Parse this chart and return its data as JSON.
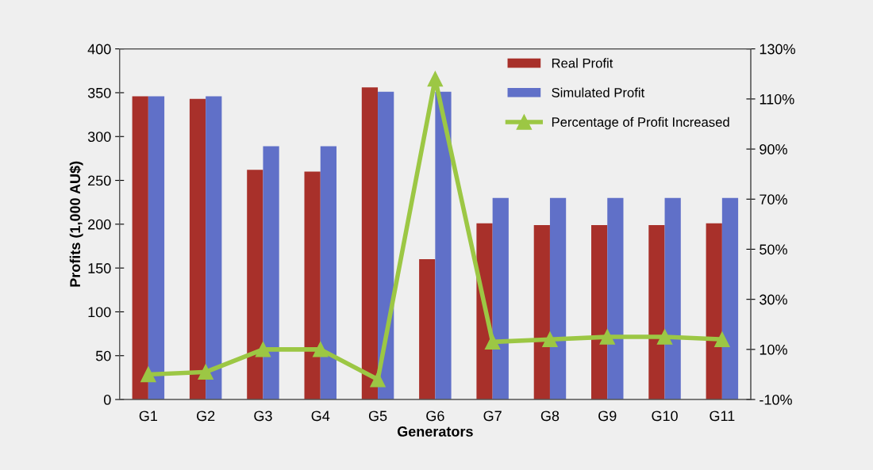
{
  "chart_data": {
    "type": "bar",
    "xlabel": "Generators",
    "ylabel": "Profits (1,000 AU$)",
    "categories": [
      "G1",
      "G2",
      "G3",
      "G4",
      "G5",
      "G6",
      "G7",
      "G8",
      "G9",
      "G10",
      "G11"
    ],
    "series": [
      {
        "name": "Real Profit",
        "color": "#a8302a",
        "values": [
          346,
          343,
          262,
          260,
          356,
          160,
          201,
          199,
          199,
          199,
          201
        ]
      },
      {
        "name": "Simulated Profit",
        "color": "#6070c8",
        "values": [
          346,
          346,
          289,
          289,
          351,
          351,
          230,
          230,
          230,
          230,
          230
        ]
      },
      {
        "name": "Percentage of Profit Increased",
        "type": "line",
        "axis": "y2",
        "color": "#9cc744",
        "marker": "triangle",
        "values": [
          0,
          1,
          10,
          10,
          -2,
          118,
          13,
          14,
          15,
          15,
          14
        ]
      }
    ],
    "ylim": [
      0,
      400
    ],
    "yticks": [
      0,
      50,
      100,
      150,
      200,
      250,
      300,
      350,
      400
    ],
    "y2lim": [
      -10,
      130
    ],
    "y2ticks": [
      {
        "value": -10,
        "label": "-10%"
      },
      {
        "value": 10,
        "label": "10%"
      },
      {
        "value": 30,
        "label": "30%"
      },
      {
        "value": 50,
        "label": "50%"
      },
      {
        "value": 70,
        "label": "70%"
      },
      {
        "value": 90,
        "label": "90%"
      },
      {
        "value": 110,
        "label": "110%"
      },
      {
        "value": 130,
        "label": "130%"
      }
    ],
    "grid": false,
    "legend": "top right"
  }
}
